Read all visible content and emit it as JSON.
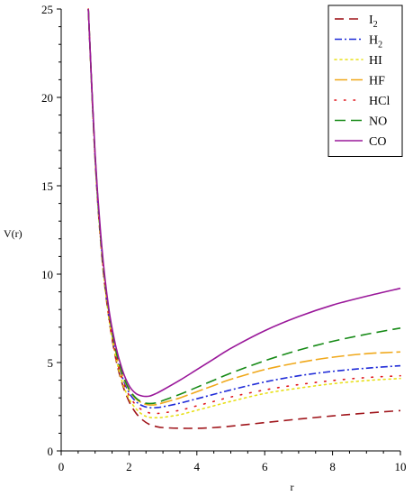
{
  "chart_data": {
    "type": "line",
    "title": "",
    "xlabel": "r",
    "ylabel": "V(r)",
    "xlim": [
      0,
      10
    ],
    "ylim": [
      0,
      25
    ],
    "xticks": [
      0,
      2,
      4,
      6,
      8,
      10
    ],
    "yticks": [
      0,
      5,
      10,
      15,
      20,
      25
    ],
    "grid": false,
    "legend_position": "top-right",
    "x": [
      0.8,
      1.0,
      1.2,
      1.4,
      1.6,
      1.8,
      2.0,
      2.2,
      2.4,
      2.6,
      2.8,
      3.0,
      3.5,
      4.0,
      4.5,
      5.0,
      6.0,
      7.0,
      8.0,
      9.0,
      10.0
    ],
    "series": [
      {
        "name": "I",
        "name_subscript": "2",
        "color": "#a0161c",
        "dash": "10,6",
        "values": [
          25.0,
          16.5,
          11.0,
          7.6,
          5.3,
          3.8,
          2.8,
          2.15,
          1.75,
          1.5,
          1.38,
          1.32,
          1.28,
          1.28,
          1.32,
          1.4,
          1.6,
          1.8,
          1.98,
          2.14,
          2.28
        ]
      },
      {
        "name": "H",
        "name_subscript": "2",
        "color": "#1f2bd8",
        "dash": "8,3,2,3",
        "values": [
          25.0,
          16.6,
          11.2,
          7.8,
          5.6,
          4.2,
          3.3,
          2.8,
          2.55,
          2.45,
          2.45,
          2.5,
          2.7,
          2.95,
          3.2,
          3.45,
          3.9,
          4.25,
          4.5,
          4.68,
          4.82
        ]
      },
      {
        "name": "HI",
        "name_subscript": "",
        "color": "#e8e01a",
        "dash": "2,4",
        "values": [
          25.0,
          16.5,
          11.1,
          7.6,
          5.4,
          3.9,
          2.95,
          2.4,
          2.05,
          1.9,
          1.88,
          1.9,
          2.05,
          2.3,
          2.55,
          2.8,
          3.25,
          3.55,
          3.8,
          3.98,
          4.1
        ]
      },
      {
        "name": "HF",
        "name_subscript": "",
        "color": "#f0a81a",
        "dash": "14,4",
        "values": [
          25.0,
          16.7,
          11.3,
          7.9,
          5.7,
          4.3,
          3.45,
          2.95,
          2.7,
          2.6,
          2.62,
          2.72,
          3.0,
          3.35,
          3.7,
          4.05,
          4.6,
          5.0,
          5.3,
          5.5,
          5.6
        ]
      },
      {
        "name": "HCl",
        "name_subscript": "",
        "color": "#e0161c",
        "dash": "1.5,9",
        "values": [
          25.0,
          16.6,
          11.2,
          7.7,
          5.5,
          4.05,
          3.15,
          2.6,
          2.3,
          2.15,
          2.12,
          2.15,
          2.3,
          2.55,
          2.8,
          3.05,
          3.45,
          3.75,
          3.98,
          4.15,
          4.25
        ]
      },
      {
        "name": "NO",
        "name_subscript": "",
        "color": "#168a16",
        "dash": "12,6",
        "values": [
          25.0,
          16.7,
          11.3,
          8.0,
          5.8,
          4.4,
          3.5,
          3.0,
          2.75,
          2.68,
          2.72,
          2.85,
          3.2,
          3.6,
          4.0,
          4.4,
          5.1,
          5.7,
          6.2,
          6.6,
          6.95
        ]
      },
      {
        "name": "CO",
        "name_subscript": "",
        "color": "#9a189a",
        "dash": "",
        "values": [
          25.0,
          16.8,
          11.5,
          8.1,
          6.0,
          4.6,
          3.7,
          3.25,
          3.1,
          3.1,
          3.25,
          3.45,
          4.0,
          4.6,
          5.2,
          5.8,
          6.8,
          7.6,
          8.25,
          8.75,
          9.2
        ]
      }
    ]
  }
}
